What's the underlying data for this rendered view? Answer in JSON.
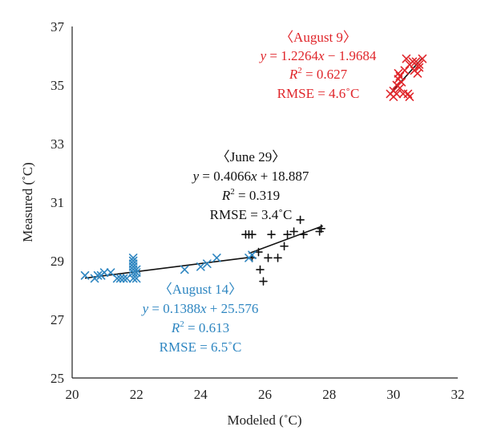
{
  "chart_data": {
    "type": "scatter",
    "xlabel": "Modeled (˚C)",
    "ylabel": "Measured (˚C)",
    "xlim": [
      20,
      32
    ],
    "ylim": [
      25,
      37
    ],
    "xticks": [
      "20",
      "22",
      "24",
      "26",
      "28",
      "30",
      "32"
    ],
    "yticks": [
      "25",
      "27",
      "29",
      "31",
      "33",
      "35",
      "37"
    ],
    "grid": false,
    "series": [
      {
        "name": "August 9",
        "marker": "x",
        "color": "#e0262b",
        "fit": {
          "slope": 1.2264,
          "intercept": -1.9684,
          "x_range": [
            29.9,
            30.9
          ]
        },
        "points": [
          [
            29.9,
            34.7
          ],
          [
            30.0,
            34.6
          ],
          [
            30.0,
            34.8
          ],
          [
            30.1,
            34.7
          ],
          [
            30.1,
            35.0
          ],
          [
            30.15,
            35.2
          ],
          [
            30.15,
            35.4
          ],
          [
            30.2,
            34.9
          ],
          [
            30.2,
            35.3
          ],
          [
            30.25,
            35.1
          ],
          [
            30.3,
            34.7
          ],
          [
            30.35,
            35.5
          ],
          [
            30.4,
            35.9
          ],
          [
            30.45,
            34.7
          ],
          [
            30.5,
            34.6
          ],
          [
            30.5,
            35.7
          ],
          [
            30.6,
            35.8
          ],
          [
            30.65,
            35.5
          ],
          [
            30.7,
            35.8
          ],
          [
            30.75,
            35.4
          ],
          [
            30.8,
            35.6
          ],
          [
            30.8,
            35.7
          ],
          [
            30.9,
            35.9
          ]
        ],
        "labels": {
          "name": "〈August 9〉",
          "equation": "y = 1.2264x − 1.9684",
          "r2": "R2 = 0.627",
          "rmse": "RMSE = 4.6˚C"
        }
      },
      {
        "name": "June 29",
        "marker": "+",
        "color": "#111111",
        "fit": {
          "slope": 0.4066,
          "intercept": 18.887,
          "x_range": [
            25.5,
            27.8
          ]
        },
        "points": [
          [
            25.4,
            29.9
          ],
          [
            25.5,
            29.9
          ],
          [
            25.6,
            29.9
          ],
          [
            25.6,
            29.1
          ],
          [
            25.8,
            29.3
          ],
          [
            25.85,
            28.7
          ],
          [
            25.95,
            28.3
          ],
          [
            26.1,
            29.1
          ],
          [
            26.2,
            29.9
          ],
          [
            26.4,
            29.1
          ],
          [
            26.6,
            29.5
          ],
          [
            26.7,
            29.9
          ],
          [
            26.9,
            30.0
          ],
          [
            27.1,
            30.4
          ],
          [
            27.2,
            29.9
          ],
          [
            27.7,
            30.0
          ],
          [
            27.75,
            30.1
          ]
        ],
        "labels": {
          "name": "〈June 29〉",
          "equation": "y = 0.4066x + 18.887",
          "r2": "R2 = 0.319",
          "rmse": "RMSE = 3.4˚C"
        }
      },
      {
        "name": "August 14",
        "marker": "x",
        "color": "#2e86c1",
        "fit": {
          "slope": 0.1388,
          "intercept": 25.576,
          "x_range": [
            20.4,
            25.6
          ]
        },
        "points": [
          [
            20.4,
            28.5
          ],
          [
            20.7,
            28.4
          ],
          [
            20.8,
            28.5
          ],
          [
            20.9,
            28.5
          ],
          [
            21.0,
            28.6
          ],
          [
            21.2,
            28.6
          ],
          [
            21.4,
            28.4
          ],
          [
            21.5,
            28.4
          ],
          [
            21.6,
            28.4
          ],
          [
            21.7,
            28.4
          ],
          [
            21.9,
            28.4
          ],
          [
            21.9,
            28.6
          ],
          [
            21.9,
            28.7
          ],
          [
            21.9,
            28.8
          ],
          [
            21.9,
            28.9
          ],
          [
            21.9,
            29.0
          ],
          [
            21.9,
            29.1
          ],
          [
            22.0,
            28.4
          ],
          [
            22.0,
            28.6
          ],
          [
            22.0,
            28.7
          ],
          [
            23.5,
            28.7
          ],
          [
            24.0,
            28.8
          ],
          [
            24.2,
            28.9
          ],
          [
            24.5,
            29.1
          ],
          [
            25.5,
            29.1
          ],
          [
            25.6,
            29.2
          ]
        ],
        "labels": {
          "name": "〈August 14〉",
          "equation": "y = 0.1388x + 25.576",
          "r2": "R2 = 0.613",
          "rmse": "RMSE = 6.5˚C"
        }
      }
    ]
  }
}
